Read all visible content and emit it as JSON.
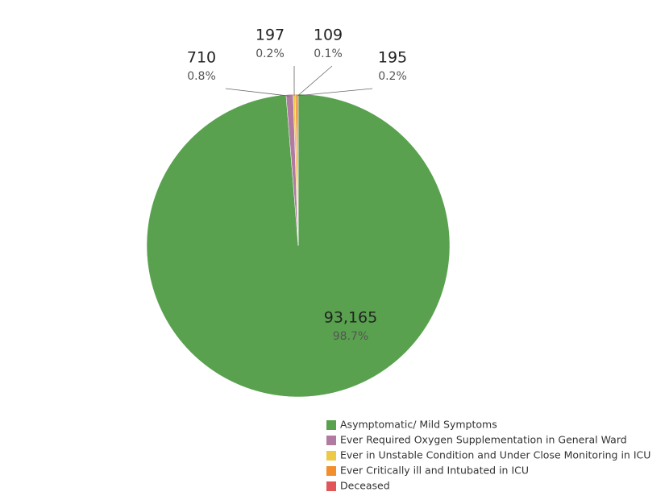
{
  "chart_data": {
    "type": "pie",
    "categories": [
      "Asymptomatic/ Mild Symptoms",
      "Ever Required Oxygen Supplementation in General Ward",
      "Ever in Unstable Condition and Under Close Monitoring in ICU",
      "Ever Critically ill and Intubated in ICU",
      "Deceased"
    ],
    "values": [
      93165,
      710,
      197,
      195,
      109
    ],
    "value_labels": [
      "93,165",
      "710",
      "197",
      "195",
      "109"
    ],
    "percentages": [
      98.7,
      0.8,
      0.2,
      0.2,
      0.1
    ],
    "percentage_labels": [
      "98.7%",
      "0.8%",
      "0.2%",
      "0.2%",
      "0.1%"
    ],
    "colors": [
      "#59a14f",
      "#b07aa1",
      "#edc948",
      "#f28e2b",
      "#e15759"
    ]
  }
}
